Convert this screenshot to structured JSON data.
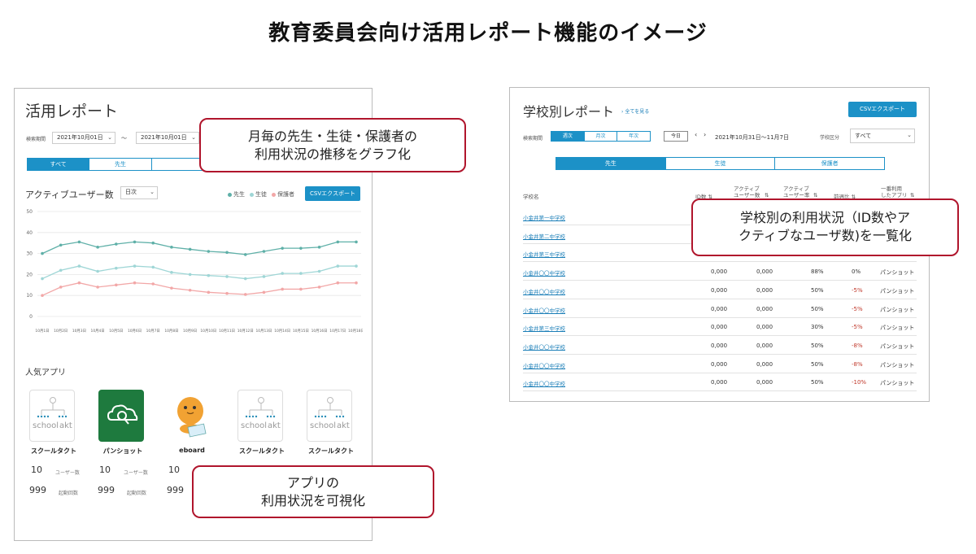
{
  "title": "教育委員会向け活用レポート機能のイメージ",
  "left": {
    "title": "活用レポート",
    "search_label": "検索期間",
    "date_from": "2021年10月01日",
    "date_to": "2021年10月01日",
    "tilde": "〜",
    "tabs": [
      "すべて",
      "先生",
      ""
    ],
    "active_tab": 0,
    "chart_heading": "アクティブユーザー数",
    "period_select": "日次",
    "legend": [
      {
        "label": "先生",
        "color": "#5fb0a8"
      },
      {
        "label": "生徒",
        "color": "#9fd6d6"
      },
      {
        "label": "保護者",
        "color": "#f2a7a7"
      }
    ],
    "csv_button": "CSVエクスポート",
    "popular_heading": "人気アプリ",
    "apps": [
      {
        "name": "スクールタクト",
        "icon": "school-takt-icon",
        "users": "10",
        "users_label": "ユーザー数",
        "launches": "999",
        "launches_label": "起動回数"
      },
      {
        "name": "パンショット",
        "icon": "panshot-icon",
        "users": "10",
        "users_label": "ユーザー数",
        "launches": "999",
        "launches_label": "起動回数"
      },
      {
        "name": "eboard",
        "icon": "eboard-icon",
        "users": "10",
        "users_label": "",
        "launches": "999",
        "launches_label": ""
      },
      {
        "name": "スクールタクト",
        "icon": "school-takt-icon",
        "users": "",
        "users_label": "",
        "launches": "",
        "launches_label": ""
      },
      {
        "name": "スクールタクト",
        "icon": "school-takt-icon",
        "users": "",
        "users_label": "",
        "launches": "",
        "launches_label": ""
      }
    ],
    "school_logo_text_1": "school",
    "school_logo_text_2": "akt"
  },
  "chart_data": {
    "type": "line",
    "categories": [
      "10月1日",
      "10月2日",
      "10月3日",
      "10月4日",
      "10月5日",
      "10月6日",
      "10月7日",
      "10月8日",
      "10月9日",
      "10月10日",
      "10月11日",
      "10月12日",
      "10月13日",
      "10月14日",
      "10月15日",
      "10月16日",
      "10月17日",
      "10月18日"
    ],
    "series": [
      {
        "name": "先生",
        "color": "#5fb0a8",
        "values": [
          30,
          34,
          35.5,
          33,
          34.5,
          35.5,
          35,
          33,
          32,
          31,
          30.5,
          29.5,
          31,
          32.5,
          32.5,
          33,
          35.5,
          35.5
        ]
      },
      {
        "name": "生徒",
        "color": "#9fd6d6",
        "values": [
          18,
          22,
          24,
          21.5,
          23,
          24,
          23.5,
          21,
          20,
          19.5,
          19,
          18,
          19,
          20.5,
          20.5,
          21.5,
          24,
          24
        ]
      },
      {
        "name": "保護者",
        "color": "#f2a7a7",
        "values": [
          10,
          14,
          16,
          14,
          15,
          16,
          15.5,
          13.5,
          12.5,
          11.5,
          11,
          10.5,
          11.5,
          13,
          13,
          14,
          16,
          16
        ]
      }
    ],
    "yticks": [
      0,
      10,
      20,
      30,
      40,
      50
    ],
    "ylim": [
      0,
      50
    ],
    "grid": true
  },
  "right": {
    "title": "学校別レポート",
    "view_all": "全てを見る",
    "csv_button": "CSVエクスポート",
    "search_label": "検索期間",
    "period_tabs": [
      "週次",
      "月次",
      "年次"
    ],
    "active_period": 0,
    "today_button": "今日",
    "date_range": "2021年10月31日〜11月7日",
    "school_type_label": "学校区分",
    "school_type_value": "すべて",
    "role_tabs": [
      "先生",
      "生徒",
      "保護者"
    ],
    "active_role": 0,
    "columns": [
      "学校名",
      "ID数",
      "アクティブ\nユーザー数",
      "アクティブ\nユーザー率",
      "前週比",
      "一番利用\nしたアプリ"
    ],
    "rows": [
      {
        "school": "小金井第一中学校",
        "ids": "",
        "active": "",
        "rate": "",
        "wow": "",
        "app": ""
      },
      {
        "school": "小金井第二中学校",
        "ids": "",
        "active": "",
        "rate": "",
        "wow": "",
        "app": ""
      },
      {
        "school": "小金井第三中学校",
        "ids": "",
        "active": "",
        "rate": "",
        "wow": "",
        "app": ""
      },
      {
        "school": "小金井〇〇中学校",
        "ids": "0,000",
        "active": "0,000",
        "rate": "88%",
        "wow": "0%",
        "app": "パンショット"
      },
      {
        "school": "小金井〇〇中学校",
        "ids": "0,000",
        "active": "0,000",
        "rate": "50%",
        "wow": "-5%",
        "app": "パンショット"
      },
      {
        "school": "小金井〇〇中学校",
        "ids": "0,000",
        "active": "0,000",
        "rate": "50%",
        "wow": "-5%",
        "app": "パンショット"
      },
      {
        "school": "小金井第三中学校",
        "ids": "0,000",
        "active": "0,000",
        "rate": "30%",
        "wow": "-5%",
        "app": "パンショット"
      },
      {
        "school": "小金井〇〇中学校",
        "ids": "0,000",
        "active": "0,000",
        "rate": "50%",
        "wow": "-8%",
        "app": "パンショット"
      },
      {
        "school": "小金井〇〇中学校",
        "ids": "0,000",
        "active": "0,000",
        "rate": "50%",
        "wow": "-8%",
        "app": "パンショット"
      },
      {
        "school": "小金井〇〇中学校",
        "ids": "0,000",
        "active": "0,000",
        "rate": "50%",
        "wow": "-10%",
        "app": "パンショット"
      }
    ]
  },
  "callouts": {
    "chart": "月毎の先生・生徒・保護者の\n利用状況の推移をグラフ化",
    "table": "学校別の利用状況（ID数やア\nクティブなユーザ数)を一覧化",
    "apps": "アプリの\n利用状況を可視化"
  },
  "colors": {
    "accent": "#1c91c7",
    "callout_border": "#b0152c",
    "link": "#1c7fb8",
    "negative": "#c0392b"
  }
}
